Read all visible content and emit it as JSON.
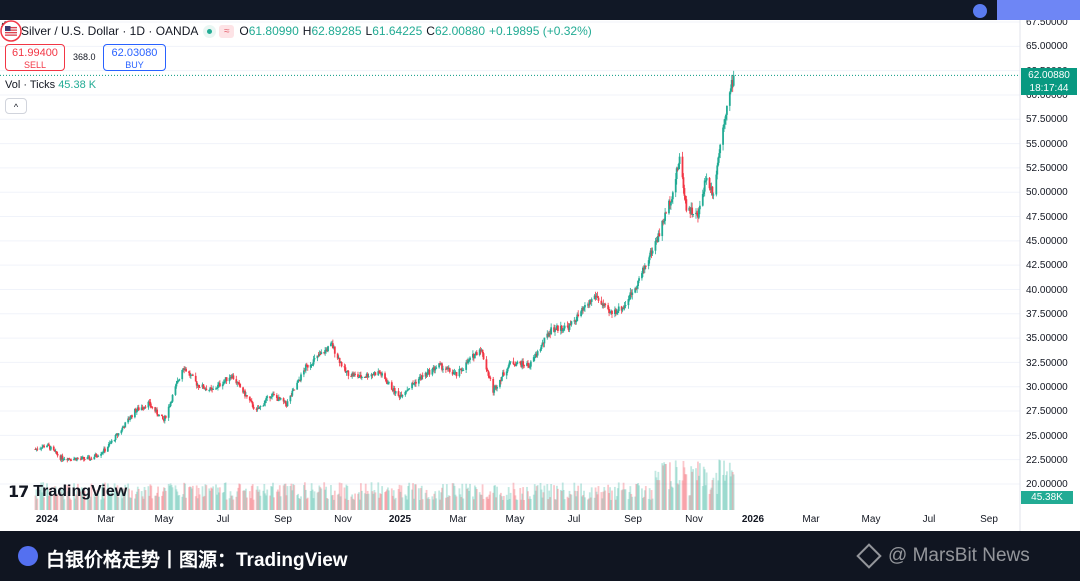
{
  "symbol": {
    "title": "Silver / U.S. Dollar · 1D · OANDA",
    "open_key": "O",
    "open": "61.80990",
    "high_key": "H",
    "high": "62.89285",
    "low_key": "L",
    "low": "61.64225",
    "close_key": "C",
    "close": "62.00880",
    "change": "+0.19895 (+0.32%)",
    "wave_icon": "≈"
  },
  "trade": {
    "sell_price": "61.99400",
    "sell_label": "SELL",
    "spread": "368.0",
    "buy_price": "62.03080",
    "buy_label": "BUY"
  },
  "volume": {
    "label": "Vol · Ticks",
    "value": "45.38 K",
    "axis_tag": "45.38K"
  },
  "collapse_icon": "^",
  "price_tag": {
    "price": "62.00880",
    "countdown": "18:17:44"
  },
  "y_ticks": [
    "67.50000",
    "65.00000",
    "62.50000",
    "60.00000",
    "57.50000",
    "55.00000",
    "52.50000",
    "50.00000",
    "47.50000",
    "45.00000",
    "42.50000",
    "40.00000",
    "37.50000",
    "35.00000",
    "32.50000",
    "30.00000",
    "27.50000",
    "25.00000",
    "22.50000",
    "20.00000"
  ],
  "x_ticks": [
    {
      "label": "2024",
      "bold": true
    },
    {
      "label": "Mar"
    },
    {
      "label": "May"
    },
    {
      "label": "Jul"
    },
    {
      "label": "Sep"
    },
    {
      "label": "Nov"
    },
    {
      "label": "2025",
      "bold": true
    },
    {
      "label": "Mar"
    },
    {
      "label": "May"
    },
    {
      "label": "Jul"
    },
    {
      "label": "Sep"
    },
    {
      "label": "Nov"
    },
    {
      "label": "2026",
      "bold": true
    },
    {
      "label": "Mar"
    },
    {
      "label": "May"
    },
    {
      "label": "Jul"
    },
    {
      "label": "Sep"
    }
  ],
  "brand": "TradingView",
  "brand_mark": "17",
  "caption": "白银价格走势丨图源：TradingView",
  "watermark": "@ MarsBit News",
  "colors": {
    "up": "#22ab94",
    "down": "#f23645",
    "accent": "#089981"
  },
  "chart_data": {
    "type": "candlestick",
    "title": "Silver / U.S. Dollar · 1D · OANDA",
    "x_start": "2024-01",
    "x_end": "2025-12",
    "y_range": [
      20.0,
      67.5
    ],
    "last_close": 62.0088,
    "last_volume_k": 45.38,
    "price_path": [
      [
        "2023-12-20",
        23.6
      ],
      [
        "2024-01-01",
        24.0
      ],
      [
        "2024-01-15",
        22.7
      ],
      [
        "2024-02-01",
        22.6
      ],
      [
        "2024-02-15",
        22.6
      ],
      [
        "2024-03-01",
        23.5
      ],
      [
        "2024-03-15",
        25.2
      ],
      [
        "2024-04-01",
        27.5
      ],
      [
        "2024-04-15",
        28.3
      ],
      [
        "2024-05-01",
        26.5
      ],
      [
        "2024-05-21",
        32.1
      ],
      [
        "2024-06-05",
        30.2
      ],
      [
        "2024-06-20",
        29.6
      ],
      [
        "2024-07-10",
        31.2
      ],
      [
        "2024-08-05",
        27.5
      ],
      [
        "2024-08-20",
        29.2
      ],
      [
        "2024-09-05",
        28.2
      ],
      [
        "2024-09-25",
        32.0
      ],
      [
        "2024-10-22",
        34.3
      ],
      [
        "2024-11-05",
        31.5
      ],
      [
        "2024-11-20",
        31.0
      ],
      [
        "2024-12-10",
        31.5
      ],
      [
        "2024-12-30",
        29.0
      ],
      [
        "2025-01-20",
        30.8
      ],
      [
        "2025-02-10",
        32.2
      ],
      [
        "2025-02-28",
        31.2
      ],
      [
        "2025-03-25",
        34.0
      ],
      [
        "2025-04-07",
        29.6
      ],
      [
        "2025-04-25",
        32.5
      ],
      [
        "2025-05-15",
        32.2
      ],
      [
        "2025-06-06",
        35.9
      ],
      [
        "2025-06-25",
        36.2
      ],
      [
        "2025-07-22",
        39.4
      ],
      [
        "2025-08-05",
        37.5
      ],
      [
        "2025-08-20",
        38.2
      ],
      [
        "2025-09-05",
        41.0
      ],
      [
        "2025-09-25",
        45.5
      ],
      [
        "2025-10-10",
        50.0
      ],
      [
        "2025-10-17",
        53.5
      ],
      [
        "2025-10-24",
        48.5
      ],
      [
        "2025-11-05",
        47.5
      ],
      [
        "2025-11-13",
        51.5
      ],
      [
        "2025-11-21",
        50.0
      ],
      [
        "2025-12-01",
        57.0
      ],
      [
        "2025-12-09",
        60.5
      ],
      [
        "2025-12-12",
        62.0
      ]
    ]
  }
}
